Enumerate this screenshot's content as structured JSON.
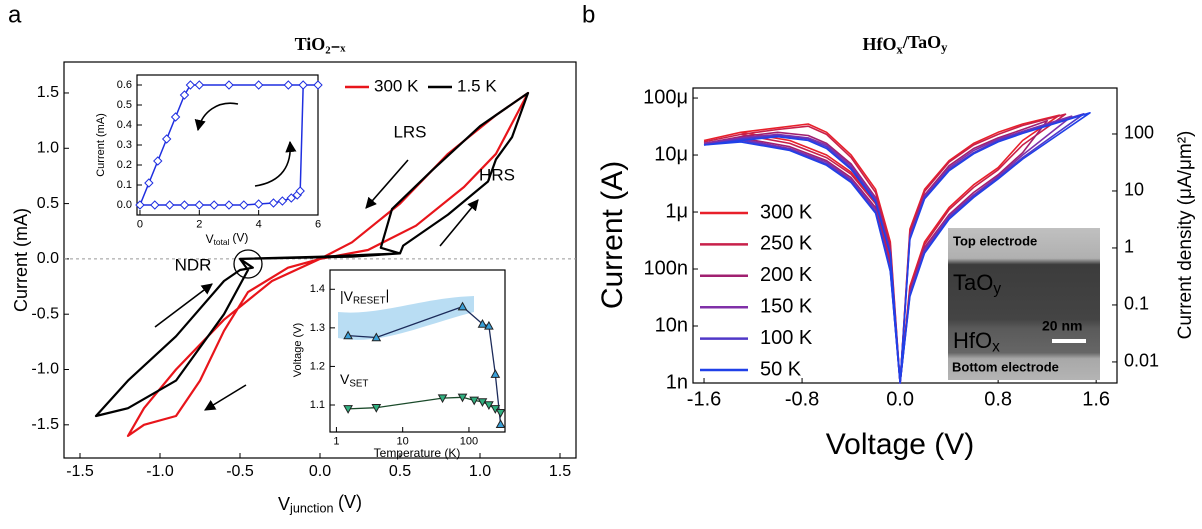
{
  "panel_labels": [
    "a",
    "b"
  ],
  "chart_data": [
    {
      "type": "line",
      "title": "TiO₂₋ₓ",
      "xlabel": "V",
      "xlabel_sub": "junction",
      "xlabel_unit": "(V)",
      "ylabel": "Current (mA)",
      "annotations": [
        "LRS",
        "HRS",
        "NDR"
      ],
      "xlim": [
        -1.6,
        1.6
      ],
      "ylim": [
        -1.8,
        1.78
      ],
      "xticks": [
        -1.5,
        {
          "value": -1,
          "label": "-1.0"
        },
        -0.5,
        {
          "value": 0,
          "label": "0.0"
        },
        0.5,
        {
          "value": 1,
          "label": "1.0"
        },
        1.5
      ],
      "yticks": [
        -1.5,
        {
          "value": -1,
          "label": "-1.0"
        },
        -0.5,
        {
          "value": 0,
          "label": "0.0"
        },
        0.5,
        {
          "value": 1,
          "label": "1.0"
        },
        1.5
      ],
      "series": [
        {
          "name": "300 K",
          "color": "#e8151b",
          "x": [
            0,
            0.3,
            0.6,
            0.9,
            1.1,
            1.3,
            1.1,
            0.8,
            0.5,
            0.2,
            0,
            -0.3,
            -0.6,
            -0.9,
            -1.1,
            -1.2,
            -1.1,
            -0.9,
            -0.75,
            -0.6,
            -0.45,
            -0.2,
            0
          ],
          "values": [
            0,
            0.08,
            0.3,
            0.65,
            0.95,
            1.5,
            1.3,
            0.95,
            0.5,
            0.15,
            0,
            -0.2,
            -0.55,
            -1.0,
            -1.35,
            -1.6,
            -1.5,
            -1.42,
            -1.1,
            -0.65,
            -0.3,
            -0.08,
            0
          ]
        },
        {
          "name": "1.5 K",
          "color": "#000000",
          "x": [
            -0.5,
            0,
            0.5,
            0.52,
            0.8,
            1.05,
            1.1,
            1.2,
            1.3,
            1.0,
            0.7,
            0.45,
            0.38,
            0.5,
            0.2,
            -0.5,
            -0.42,
            -0.5,
            -0.6,
            -0.9,
            -1.2,
            -1.4,
            -1.2,
            -0.9,
            -0.6,
            -0.45,
            -0.5
          ],
          "values": [
            0,
            0.02,
            0.05,
            0.12,
            0.4,
            0.7,
            0.9,
            1.1,
            1.5,
            1.2,
            0.8,
            0.45,
            0.1,
            0.05,
            0.02,
            0,
            -0.08,
            -0.1,
            -0.2,
            -0.7,
            -1.1,
            -1.42,
            -1.35,
            -1.1,
            -0.5,
            -0.1,
            0
          ]
        }
      ]
    },
    {
      "type": "line",
      "xlabel": "V",
      "xlabel_sub": "total",
      "xlabel_unit": "(V)",
      "ylabel": "Current (mA)",
      "marker": "diamond",
      "xlim": [
        -0.1,
        6
      ],
      "ylim": [
        -0.05,
        0.65
      ],
      "xticks": [
        0,
        2,
        4,
        6
      ],
      "yticks": [
        {
          "value": 0,
          "label": "0.0"
        },
        0.1,
        0.2,
        0.3,
        0.4,
        0.5,
        0.6
      ],
      "series": [
        {
          "color": "#1f2fe0",
          "x": [
            6,
            5,
            4,
            3,
            2,
            1.7,
            1.5,
            1.2,
            0.9,
            0.6,
            0.3,
            0,
            0.5,
            1,
            1.5,
            2,
            2.5,
            3,
            3.5,
            4,
            4.5,
            4.8,
            5.1,
            5.3,
            5.4,
            5.5
          ],
          "values": [
            0.6,
            0.6,
            0.6,
            0.6,
            0.6,
            0.6,
            0.55,
            0.44,
            0.33,
            0.22,
            0.11,
            0,
            0,
            0,
            0,
            0,
            0,
            0,
            0,
            0.005,
            0.01,
            0.02,
            0.035,
            0.05,
            0.07,
            0.6
          ]
        }
      ]
    },
    {
      "type": "line",
      "xscale": "log",
      "xlabel": "Temperature (K)",
      "ylabel": "Voltage (V)",
      "xlim": [
        0.8,
        350
      ],
      "ylim": [
        1.03,
        1.45
      ],
      "xticks": [
        1,
        10,
        100
      ],
      "yticks": [
        1.1,
        1.2,
        1.3,
        1.4
      ],
      "series": [
        {
          "name": "|V",
          "name_sub": "RESET",
          "name_end": "|",
          "marker": "triangle-up",
          "color": "#3aa0d8",
          "line_color": "#1c2b5a",
          "x": [
            1.5,
            4,
            80,
            160,
            200,
            250,
            300
          ],
          "values": [
            1.28,
            1.275,
            1.355,
            1.31,
            1.305,
            1.18,
            1.05
          ]
        },
        {
          "name": "V",
          "name_sub": "SET",
          "marker": "triangle-down",
          "color": "#30b080",
          "line_color": "#1a4a2a",
          "x": [
            1.5,
            4,
            40,
            80,
            120,
            160,
            200,
            250,
            300
          ],
          "values": [
            1.09,
            1.093,
            1.118,
            1.12,
            1.112,
            1.108,
            1.1,
            1.09,
            1.08
          ]
        }
      ]
    },
    {
      "type": "line",
      "yscale": "log",
      "y2scale": "log",
      "title": "HfO",
      "title_sub": "x",
      "title_mid": "/TaO",
      "title_sub2": "y",
      "xlabel": "Voltage (V)",
      "ylabel": "Current (A)",
      "y2label": "Current density (μA/μm²)",
      "xlim": [
        -1.69,
        1.77
      ],
      "ylim": [
        1e-09,
        0.00015
      ],
      "y2lim": [
        0.00427,
        641
      ],
      "xticks": [
        -1.6,
        -0.8,
        {
          "value": 0,
          "label": "0.0"
        },
        0.8,
        1.6
      ],
      "yticks": [
        {
          "value": 1e-09,
          "label": "1n"
        },
        {
          "value": 1e-08,
          "label": "10n"
        },
        {
          "value": 1e-07,
          "label": "100n"
        },
        {
          "value": 1e-06,
          "label": "1μ"
        },
        {
          "value": 1e-05,
          "label": "10μ"
        },
        {
          "value": 0.0001,
          "label": "100μ"
        }
      ],
      "y2ticks": [
        0.01,
        0.1,
        1,
        10,
        100
      ],
      "inset_texts": {
        "top": "Top electrode",
        "tao": "TaO",
        "tao_sub": "y",
        "hfo": "HfO",
        "hfo_sub": "x",
        "scale": "20 nm",
        "bottom": "Bottom electrode"
      },
      "series": [
        {
          "name": "300 K",
          "color": "#e8202a",
          "x": [
            -1.6,
            -1.3,
            -1.0,
            -0.75,
            -0.6,
            -0.4,
            -0.2,
            -0.08,
            0,
            0.08,
            0.2,
            0.4,
            0.6,
            0.8,
            1.0,
            1.3,
            1.0,
            0.8,
            0.6,
            0.4,
            0.2,
            0.08,
            0,
            -0.08,
            -0.2,
            -0.4,
            -0.6,
            -0.9,
            -1.3,
            -1.6
          ],
          "values": [
            1.8e-05,
            2.5e-05,
            3e-05,
            3.5e-05,
            2.5e-05,
            1e-05,
            2.5e-06,
            3e-07,
            1e-09,
            5e-08,
            3e-07,
            1.2e-06,
            3e-06,
            6e-06,
            1.8e-05,
            5e-05,
            3.5e-05,
            2.5e-05,
            1.6e-05,
            8e-06,
            2.5e-06,
            5e-07,
            1e-09,
            1.5e-07,
            1.5e-06,
            5e-06,
            1e-05,
            1.8e-05,
            2.5e-05,
            1.8e-05
          ]
        },
        {
          "name": "250 K",
          "color": "#c8204a",
          "x": [
            -1.6,
            -1.3,
            -1.0,
            -0.75,
            -0.6,
            -0.4,
            -0.2,
            -0.08,
            0,
            0.08,
            0.2,
            0.4,
            0.6,
            0.8,
            1.0,
            1.35,
            1.0,
            0.8,
            0.6,
            0.4,
            0.2,
            0.08,
            0,
            -0.08,
            -0.2,
            -0.4,
            -0.6,
            -0.9,
            -1.3,
            -1.6
          ],
          "values": [
            1.7e-05,
            2.3e-05,
            2.8e-05,
            3.2e-05,
            2.3e-05,
            9e-06,
            2.2e-06,
            2.6e-07,
            1e-09,
            4.5e-08,
            2.7e-07,
            1.1e-06,
            2.7e-06,
            5.5e-06,
            1.5e-05,
            5.2e-05,
            3.3e-05,
            2.3e-05,
            1.5e-05,
            7.5e-06,
            2.3e-06,
            4.5e-07,
            1e-09,
            1.3e-07,
            1.4e-06,
            4.6e-06,
            9e-06,
            1.6e-05,
            2.3e-05,
            1.7e-05
          ]
        },
        {
          "name": "200 K",
          "color": "#a02070",
          "x": [
            -1.6,
            -1.3,
            -1.0,
            -0.75,
            -0.6,
            -0.4,
            -0.2,
            -0.08,
            0,
            0.08,
            0.2,
            0.4,
            0.6,
            0.8,
            1.0,
            1.2,
            1.0,
            0.8,
            0.6,
            0.4,
            0.2,
            0.08,
            0,
            -0.08,
            -0.2,
            -0.4,
            -0.6,
            -0.9,
            -1.3,
            -1.6
          ],
          "values": [
            1.6e-05,
            2.1e-05,
            2.5e-05,
            2.2e-05,
            1.6e-05,
            7e-06,
            1.8e-06,
            2.2e-07,
            1e-09,
            4e-08,
            2.4e-07,
            9e-07,
            2.2e-06,
            4.5e-06,
            1.1e-05,
            4e-05,
            2.8e-05,
            2e-05,
            1.3e-05,
            6.5e-06,
            2e-06,
            4e-07,
            1e-09,
            1.1e-07,
            1.2e-06,
            4e-06,
            8e-06,
            1.4e-05,
            2e-05,
            1.6e-05
          ]
        },
        {
          "name": "150 K",
          "color": "#8030a8",
          "x": [
            -1.6,
            -1.3,
            -1.0,
            -0.75,
            -0.6,
            -0.4,
            -0.2,
            -0.08,
            0,
            0.08,
            0.2,
            0.4,
            0.6,
            0.8,
            1.0,
            1.4,
            1.0,
            0.8,
            0.6,
            0.4,
            0.2,
            0.08,
            0,
            -0.08,
            -0.2,
            -0.4,
            -0.6,
            -0.9,
            -1.3,
            -1.6
          ],
          "values": [
            1.6e-05,
            2e-05,
            2.3e-05,
            2e-05,
            1.5e-05,
            6.5e-06,
            1.7e-06,
            2e-07,
            1e-09,
            3.8e-08,
            2.2e-07,
            8.5e-07,
            2e-06,
            4.2e-06,
            1e-05,
            4.8e-05,
            2.6e-05,
            1.9e-05,
            1.2e-05,
            6e-06,
            1.9e-06,
            3.8e-07,
            1e-09,
            1e-07,
            1.1e-06,
            3.7e-06,
            7.5e-06,
            1.3e-05,
            1.9e-05,
            1.6e-05
          ]
        },
        {
          "name": "100 K",
          "color": "#5038c8",
          "x": [
            -1.6,
            -1.3,
            -1.0,
            -0.75,
            -0.6,
            -0.4,
            -0.2,
            -0.08,
            0,
            0.08,
            0.2,
            0.4,
            0.6,
            0.8,
            1.0,
            1.5,
            1.0,
            0.8,
            0.6,
            0.4,
            0.2,
            0.08,
            0,
            -0.08,
            -0.2,
            -0.4,
            -0.6,
            -0.9,
            -1.3,
            -1.6
          ],
          "values": [
            1.5e-05,
            1.9e-05,
            2.2e-05,
            1.9e-05,
            1.4e-05,
            6e-06,
            1.6e-06,
            1.9e-07,
            1e-09,
            3.5e-08,
            2e-07,
            8e-07,
            1.9e-06,
            4e-06,
            9e-06,
            5.3e-05,
            2.5e-05,
            1.8e-05,
            1.1e-05,
            5.6e-06,
            1.8e-06,
            3.5e-07,
            1e-09,
            9.5e-08,
            1e-06,
            3.5e-06,
            7e-06,
            1.25e-05,
            1.8e-05,
            1.5e-05
          ]
        },
        {
          "name": "50 K",
          "color": "#2040e8",
          "x": [
            -1.6,
            -1.3,
            -1.0,
            -0.75,
            -0.6,
            -0.4,
            -0.2,
            -0.08,
            0,
            0.08,
            0.2,
            0.4,
            0.6,
            0.8,
            1.0,
            1.55,
            1.0,
            0.8,
            0.6,
            0.4,
            0.2,
            0.08,
            0,
            -0.08,
            -0.2,
            -0.4,
            -0.6,
            -0.9,
            -1.3,
            -1.6
          ],
          "values": [
            1.5e-05,
            1.8e-05,
            2.1e-05,
            1.8e-05,
            1.3e-05,
            5.6e-06,
            1.5e-06,
            1.8e-07,
            1e-09,
            3.3e-08,
            1.9e-07,
            7.5e-07,
            1.8e-06,
            3.8e-06,
            8.5e-06,
            5.5e-05,
            2.4e-05,
            1.7e-05,
            1.05e-05,
            5.3e-06,
            1.7e-06,
            3.3e-07,
            1e-09,
            9e-08,
            9.5e-07,
            3.3e-06,
            6.6e-06,
            1.2e-05,
            1.7e-05,
            1.5e-05
          ]
        }
      ]
    }
  ]
}
